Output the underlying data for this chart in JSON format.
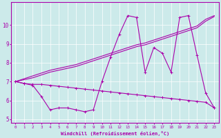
{
  "xlabel": "Windchill (Refroidissement éolien,°C)",
  "background_color": "#cceaea",
  "line_color": "#aa00aa",
  "x": [
    0,
    1,
    2,
    3,
    4,
    5,
    6,
    7,
    8,
    9,
    10,
    11,
    12,
    13,
    14,
    15,
    16,
    17,
    18,
    19,
    20,
    21,
    22,
    23
  ],
  "y_zigzag": [
    7.0,
    6.9,
    6.8,
    6.2,
    5.5,
    5.6,
    5.6,
    5.5,
    5.4,
    5.5,
    7.0,
    8.3,
    9.5,
    10.5,
    10.4,
    7.5,
    8.8,
    8.5,
    7.5,
    10.4,
    10.5,
    8.4,
    6.4,
    5.6
  ],
  "y_rise1": [
    7.0,
    7.15,
    7.3,
    7.45,
    7.6,
    7.7,
    7.8,
    7.9,
    8.05,
    8.2,
    8.35,
    8.5,
    8.65,
    8.8,
    8.95,
    9.05,
    9.2,
    9.35,
    9.5,
    9.65,
    9.8,
    9.95,
    10.3,
    10.5
  ],
  "y_rise2": [
    7.0,
    7.1,
    7.2,
    7.35,
    7.5,
    7.6,
    7.7,
    7.8,
    7.95,
    8.1,
    8.25,
    8.4,
    8.55,
    8.7,
    8.85,
    8.95,
    9.1,
    9.25,
    9.4,
    9.55,
    9.7,
    9.85,
    10.2,
    10.45
  ],
  "y_flat": [
    7.0,
    6.9,
    6.85,
    6.85,
    6.8,
    6.75,
    6.7,
    6.65,
    6.6,
    6.55,
    6.5,
    6.45,
    6.4,
    6.35,
    6.3,
    6.25,
    6.2,
    6.15,
    6.1,
    6.05,
    6.0,
    5.95,
    5.9,
    5.6
  ],
  "ylim": [
    4.8,
    11.2
  ],
  "yticks": [
    5,
    6,
    7,
    8,
    9,
    10
  ],
  "xticks": [
    0,
    1,
    2,
    3,
    4,
    5,
    6,
    7,
    8,
    9,
    10,
    11,
    12,
    13,
    14,
    15,
    16,
    17,
    18,
    19,
    20,
    21,
    22,
    23
  ]
}
